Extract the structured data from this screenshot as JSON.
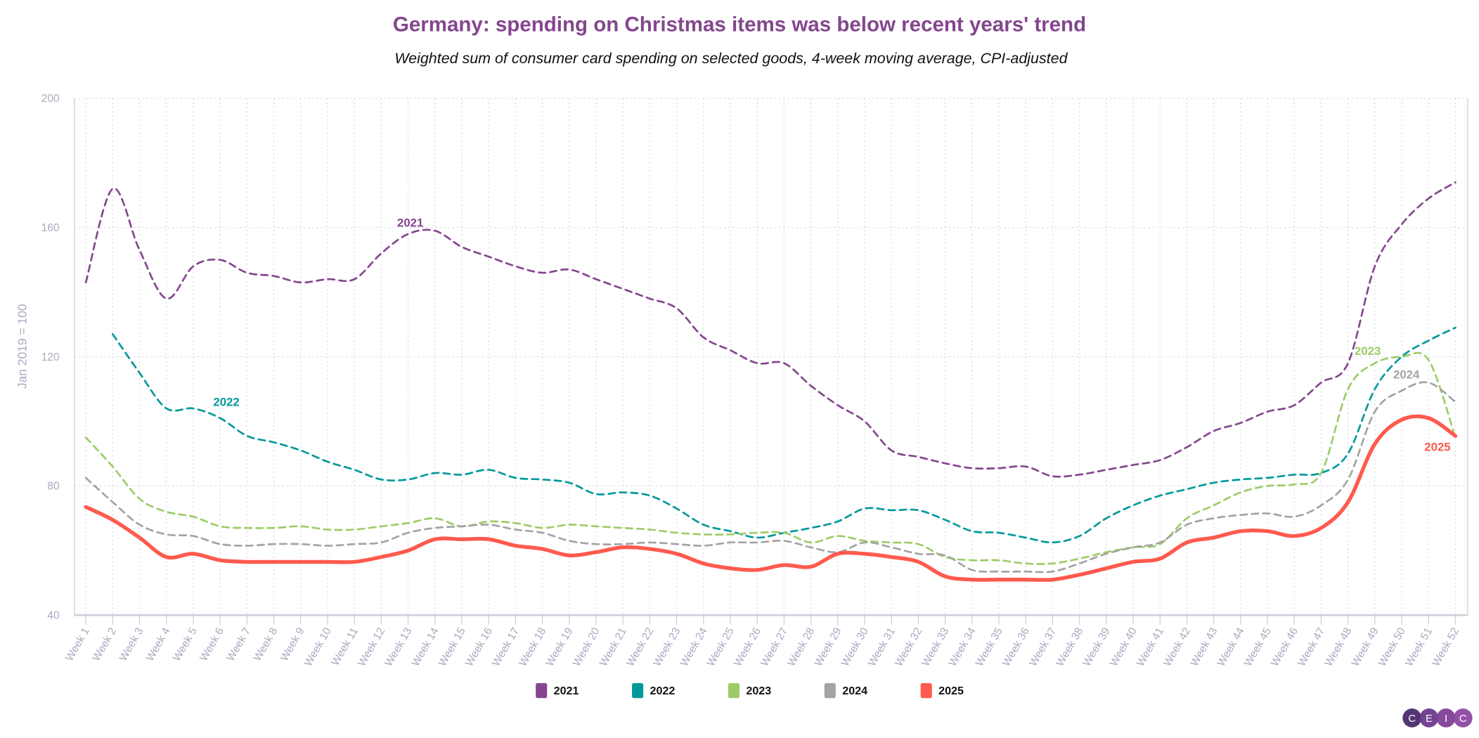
{
  "chart_data": {
    "type": "line",
    "title": "Germany: spending on Christmas items was below recent years' trend",
    "subtitle": "Weighted sum of consumer card spending on selected goods, 4-week moving average, CPI-adjusted",
    "xlabel": "",
    "ylabel": "Jan 2019 = 100",
    "ylim": [
      40,
      200
    ],
    "yticks": [
      40,
      80,
      120,
      160,
      200
    ],
    "grid": true,
    "legend_position": "bottom",
    "categories": [
      "Week 1",
      "Week 2",
      "Week 3",
      "Week 4",
      "Week 5",
      "Week 6",
      "Week 7",
      "Week 8",
      "Week 9",
      "Week 10",
      "Week 11",
      "Week 12",
      "Week 13",
      "Week 14",
      "Week 15",
      "Week 16",
      "Week 17",
      "Week 18",
      "Week 19",
      "Week 20",
      "Week 21",
      "Week 22",
      "Week 23",
      "Week 24",
      "Week 25",
      "Week 26",
      "Week 27",
      "Week 28",
      "Week 29",
      "Week 30",
      "Week 31",
      "Week 32",
      "Week 33",
      "Week 34",
      "Week 35",
      "Week 36",
      "Week 37",
      "Week 38",
      "Week 39",
      "Week 40",
      "Week 41",
      "Week 42",
      "Week 43",
      "Week 44",
      "Week 45",
      "Week 46",
      "Week 47",
      "Week 48",
      "Week 49",
      "Week 50",
      "Week 51",
      "Week 52"
    ],
    "series": [
      {
        "name": "2021",
        "color": "#84468e",
        "dashed": true,
        "annotation": "2021",
        "values": [
          143,
          172,
          153,
          138,
          148,
          150,
          146,
          145,
          143,
          144,
          144,
          152,
          158,
          159,
          154,
          151,
          148,
          146,
          147,
          144,
          141,
          138,
          135,
          126,
          122,
          118,
          118,
          111,
          105,
          100,
          91,
          89,
          87,
          85.5,
          85.5,
          86,
          83,
          83.5,
          85,
          86.5,
          88,
          92,
          97,
          99.5,
          103,
          105,
          112,
          118,
          148,
          161,
          169,
          174
        ]
      },
      {
        "name": "2022",
        "color": "#00999a",
        "dashed": true,
        "annotation": "2022",
        "values": [
          null,
          127,
          115,
          104,
          104,
          101,
          95.5,
          93.5,
          91,
          87.5,
          85,
          82,
          82,
          84,
          83.5,
          85,
          82.5,
          82,
          81,
          77.5,
          78,
          77,
          73,
          68,
          66,
          64,
          65.5,
          67,
          69,
          73,
          72.5,
          72.5,
          69.5,
          66,
          65.5,
          64,
          62.5,
          64.5,
          70,
          74,
          77,
          79,
          81,
          82,
          82.5,
          83.5,
          84,
          90,
          110,
          120,
          125,
          129
        ]
      },
      {
        "name": "2023",
        "color": "#9ecb67",
        "dashed": true,
        "annotation": "2023",
        "values": [
          95,
          86,
          76,
          72,
          70.5,
          67.5,
          67,
          67,
          67.5,
          66.5,
          66.5,
          67.5,
          68.5,
          70,
          67.5,
          69,
          68.5,
          67,
          68,
          67.5,
          67,
          66.5,
          65.5,
          65,
          65,
          65.5,
          65.5,
          62.5,
          64.5,
          63,
          62.5,
          62,
          58,
          57,
          57,
          56,
          56,
          57.5,
          59.5,
          61,
          62,
          70,
          74,
          78,
          80,
          80.5,
          84,
          110,
          118,
          120,
          119,
          95
        ]
      },
      {
        "name": "2024",
        "color": "#a3a3a3",
        "dashed": true,
        "annotation": "2024",
        "values": [
          82.5,
          75,
          68,
          65,
          64.5,
          62,
          61.5,
          62,
          62,
          61.5,
          62,
          62.5,
          65.5,
          67,
          67.5,
          68,
          66.5,
          65.5,
          63,
          62,
          62,
          62.5,
          62,
          61.5,
          62.5,
          62.5,
          63,
          61,
          59.5,
          62.5,
          61,
          59,
          58.5,
          54,
          53.5,
          53.5,
          53.5,
          56,
          59,
          61,
          62.5,
          68,
          70,
          71,
          71.5,
          70.5,
          74,
          82,
          103,
          109.5,
          112,
          106
        ]
      },
      {
        "name": "2025",
        "color": "#fe5a4d",
        "dashed": false,
        "annotation": "2025",
        "values": [
          73.5,
          69.5,
          64,
          58,
          59,
          57,
          56.5,
          56.5,
          56.5,
          56.5,
          56.5,
          58,
          60,
          63.5,
          63.5,
          63.5,
          61.5,
          60.5,
          58.5,
          59.5,
          61,
          60.5,
          59,
          56,
          54.5,
          54,
          55.5,
          55,
          59,
          59,
          58,
          56.5,
          52,
          51,
          51,
          51,
          51,
          52.5,
          54.5,
          56.5,
          57.5,
          62.5,
          64,
          66,
          66,
          64.5,
          67,
          75,
          93,
          100.5,
          101,
          95.5
        ]
      }
    ]
  },
  "logo": {
    "text": "CEIC",
    "letters": [
      "C",
      "E",
      "I",
      "C"
    ],
    "colors": [
      "#4a2a6e",
      "#6b3a8c",
      "#7e3f98",
      "#8e47a3"
    ]
  }
}
